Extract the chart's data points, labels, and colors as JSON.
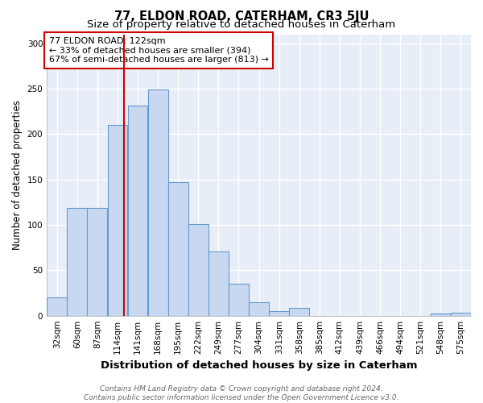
{
  "title": "77, ELDON ROAD, CATERHAM, CR3 5JU",
  "subtitle": "Size of property relative to detached houses in Caterham",
  "xlabel": "Distribution of detached houses by size in Caterham",
  "ylabel": "Number of detached properties",
  "bar_color": "#c8d8f0",
  "bar_edge_color": "#6699cc",
  "plot_bg_color": "#e8eef8",
  "fig_bg_color": "#ffffff",
  "grid_color": "#ffffff",
  "annotation_box_text": "77 ELDON ROAD: 122sqm\n← 33% of detached houses are smaller (394)\n67% of semi-detached houses are larger (813) →",
  "annotation_box_color": "#ffffff",
  "annotation_box_edge_color": "#cc0000",
  "red_line_x": 122,
  "red_line_color": "#cc0000",
  "bin_edges": [
    18.5,
    45.5,
    72.5,
    99.5,
    126.5,
    153.5,
    180.5,
    207.5,
    234.5,
    261.5,
    288.5,
    315.5,
    342.5,
    369.5,
    396.5,
    423.5,
    450.5,
    477.5,
    504.5,
    531.5,
    558.5,
    585.5
  ],
  "bin_labels": [
    "32sqm",
    "60sqm",
    "87sqm",
    "114sqm",
    "141sqm",
    "168sqm",
    "195sqm",
    "222sqm",
    "249sqm",
    "277sqm",
    "304sqm",
    "331sqm",
    "358sqm",
    "385sqm",
    "412sqm",
    "439sqm",
    "466sqm",
    "494sqm",
    "521sqm",
    "548sqm",
    "575sqm"
  ],
  "counts": [
    20,
    119,
    119,
    210,
    231,
    249,
    147,
    101,
    71,
    35,
    15,
    5,
    9,
    0,
    0,
    0,
    0,
    0,
    0,
    2,
    3
  ],
  "ylim": [
    0,
    310
  ],
  "yticks": [
    0,
    50,
    100,
    150,
    200,
    250,
    300
  ],
  "footnote": "Contains HM Land Registry data © Crown copyright and database right 2024.\nContains public sector information licensed under the Open Government Licence v3.0.",
  "title_fontsize": 10.5,
  "subtitle_fontsize": 9.5,
  "xlabel_fontsize": 9.5,
  "ylabel_fontsize": 8.5,
  "tick_fontsize": 7.5,
  "footnote_fontsize": 6.5,
  "annot_fontsize": 8
}
